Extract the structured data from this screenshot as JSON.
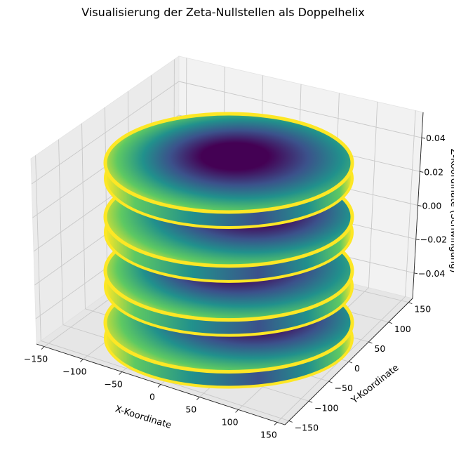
{
  "chart_data": {
    "type": "surface3d",
    "title": "Visualisierung der Zeta-Nullstellen als Doppelhelix",
    "xlabel": "X-Koordinate",
    "ylabel": "Y-Koordinate",
    "zlabel": "Z-Koordinate (Schwingung)",
    "x_ticks": [
      -150,
      -100,
      -50,
      0,
      50,
      100,
      150
    ],
    "y_ticks": [
      -150,
      -100,
      -50,
      0,
      50,
      100,
      150
    ],
    "z_ticks": [
      -0.04,
      -0.02,
      0.0,
      0.02,
      0.04
    ],
    "x_tick_labels": [
      "−150",
      "−100",
      "−50",
      "0",
      "50",
      "100",
      "150"
    ],
    "y_tick_labels": [
      "−150",
      "−100",
      "−50",
      "0",
      "50",
      "100",
      "150"
    ],
    "z_tick_labels": [
      "−0.04",
      "−0.02",
      "0.00",
      "0.02",
      "0.04"
    ],
    "xlim": [
      -160,
      160
    ],
    "ylim": [
      -160,
      160
    ],
    "zlim": [
      -0.055,
      0.055
    ],
    "colormap": "viridis",
    "colors": [
      "#440154",
      "#3b528b",
      "#21918c",
      "#5ec962",
      "#fde725"
    ],
    "grid": true,
    "discs": [
      {
        "name": "disc-1",
        "z_level": 0.034
      },
      {
        "name": "disc-2",
        "z_level": 0.008
      },
      {
        "name": "disc-3",
        "z_level": -0.018
      },
      {
        "name": "disc-4",
        "z_level": -0.043
      }
    ]
  }
}
